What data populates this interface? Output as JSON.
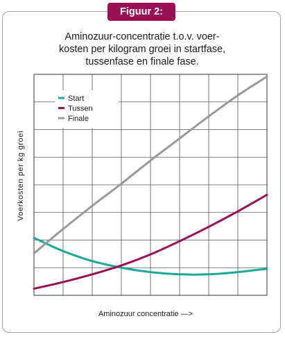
{
  "badge": "Figuur 2:",
  "chart_data": {
    "type": "line",
    "title": "Aminozuur-concentratie t.o.v. voer-\nkosten per kilogram groei in startfase,\ntussenfase en finale fase.",
    "xlabel": "Aminozuur concentratie —>",
    "ylabel": "Voerkosten per kg groei",
    "x": [
      0,
      1,
      2,
      3,
      4,
      5,
      6,
      7,
      8
    ],
    "xlim": [
      0,
      8
    ],
    "ylim": [
      0,
      10
    ],
    "grid": true,
    "legend_position": "top-left",
    "series": [
      {
        "name": "Start",
        "color": "#1aa89a",
        "values": [
          2.6,
          2.0,
          1.55,
          1.25,
          1.05,
          0.95,
          0.95,
          1.05,
          1.2
        ]
      },
      {
        "name": "Tussen",
        "color": "#9b0f55",
        "values": [
          0.3,
          0.6,
          0.95,
          1.35,
          1.85,
          2.45,
          3.1,
          3.8,
          4.55
        ]
      },
      {
        "name": "Finale",
        "color": "#999999",
        "values": [
          1.9,
          3.0,
          4.05,
          5.05,
          6.1,
          7.1,
          8.1,
          9.05,
          9.9
        ]
      }
    ]
  }
}
